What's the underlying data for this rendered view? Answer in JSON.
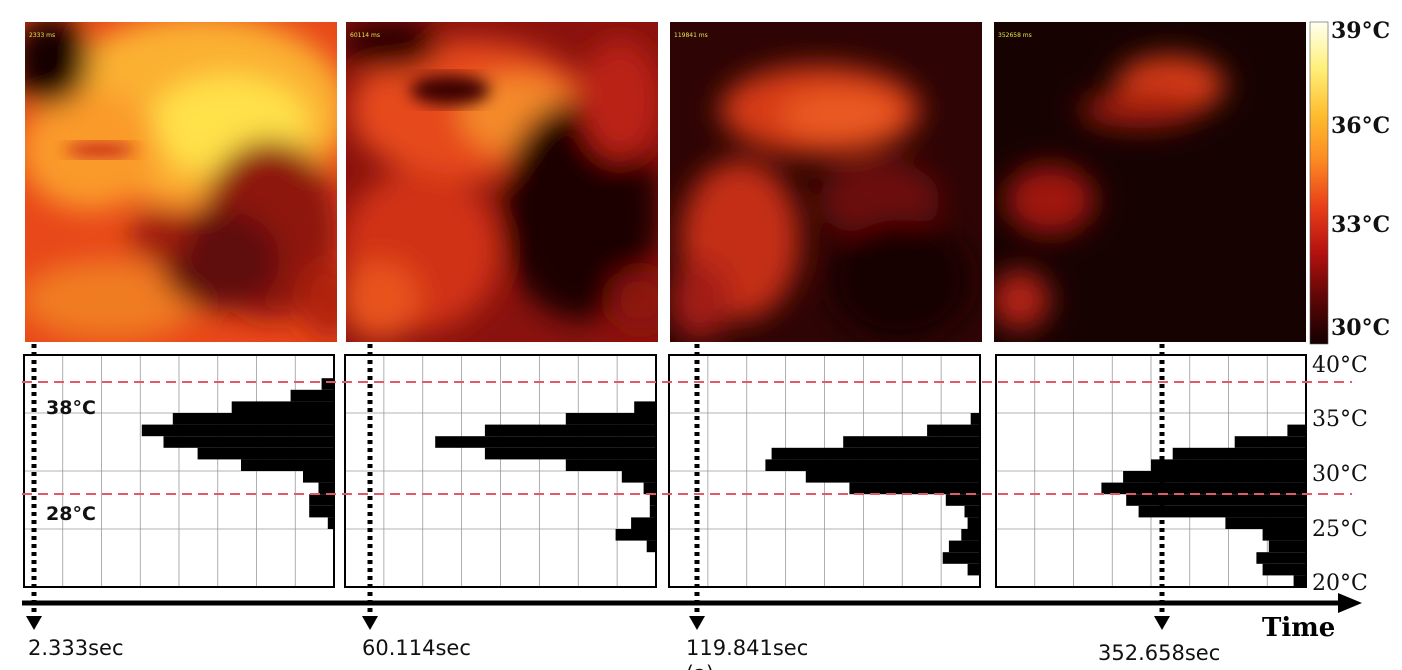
{
  "thermal_frames": [
    {
      "stamp": "2333 ms"
    },
    {
      "stamp": "60114 ms"
    },
    {
      "stamp": "119841 ms"
    },
    {
      "stamp": "352658 ms"
    }
  ],
  "colorbar": {
    "labels": [
      "39°C",
      "36°C",
      "33°C",
      "30°C"
    ],
    "stops": [
      "#fffff0",
      "#fff07a",
      "#ffbe2f",
      "#fc8a22",
      "#e9401a",
      "#b51210",
      "#5e0606",
      "#140000"
    ]
  },
  "histogram": {
    "axis_labels": [
      "40°C",
      "35°C",
      "30°C",
      "25°C",
      "20°C"
    ],
    "threshold_labels": [
      "38°C",
      "28°C"
    ],
    "threshold_color": "#e05a6a"
  },
  "timeline": {
    "label": "Time",
    "markers": [
      "2.333sec",
      "60.114sec",
      "119.841sec",
      "352.658sec"
    ],
    "partial_caption": "(a)"
  },
  "chart_data": [
    {
      "type": "bar",
      "orientation": "horizontal",
      "title": "",
      "time_sec": 2.333,
      "y_range": [
        20,
        40
      ],
      "y": [
        37.5,
        36.5,
        35.5,
        34.5,
        33.5,
        32.5,
        31.5,
        30.5,
        29.5,
        28.5,
        27.5,
        26.5,
        25.5
      ],
      "values": [
        0.04,
        0.14,
        0.33,
        0.52,
        0.62,
        0.55,
        0.44,
        0.3,
        0.1,
        0.05,
        0.08,
        0.08,
        0.02
      ],
      "grid": true
    },
    {
      "type": "bar",
      "orientation": "horizontal",
      "title": "",
      "time_sec": 60.114,
      "y_range": [
        20,
        40
      ],
      "y": [
        35.5,
        34.5,
        33.5,
        32.5,
        31.5,
        30.5,
        29.5,
        28.5,
        27.5,
        26.5,
        25.5,
        24.5,
        23.5
      ],
      "values": [
        0.07,
        0.29,
        0.55,
        0.71,
        0.55,
        0.29,
        0.11,
        0.04,
        0.02,
        0.02,
        0.08,
        0.13,
        0.03
      ],
      "grid": true
    },
    {
      "type": "bar",
      "orientation": "horizontal",
      "title": "",
      "time_sec": 119.841,
      "y_range": [
        20,
        40
      ],
      "y": [
        34.5,
        33.5,
        32.5,
        31.5,
        30.5,
        29.5,
        28.5,
        27.5,
        26.5,
        25.5,
        24.5,
        23.5,
        22.5,
        21.5
      ],
      "values": [
        0.03,
        0.17,
        0.44,
        0.67,
        0.69,
        0.56,
        0.42,
        0.11,
        0.05,
        0.04,
        0.06,
        0.1,
        0.12,
        0.04
      ],
      "grid": true
    },
    {
      "type": "bar",
      "orientation": "horizontal",
      "title": "",
      "time_sec": 352.658,
      "y_range": [
        20,
        40
      ],
      "y": [
        33.5,
        32.5,
        31.5,
        30.5,
        29.5,
        28.5,
        27.5,
        26.5,
        25.5,
        24.5,
        23.5,
        22.5,
        21.5,
        20.5
      ],
      "values": [
        0.06,
        0.23,
        0.43,
        0.5,
        0.59,
        0.66,
        0.58,
        0.54,
        0.26,
        0.14,
        0.12,
        0.16,
        0.14,
        0.04
      ],
      "grid": true
    }
  ]
}
